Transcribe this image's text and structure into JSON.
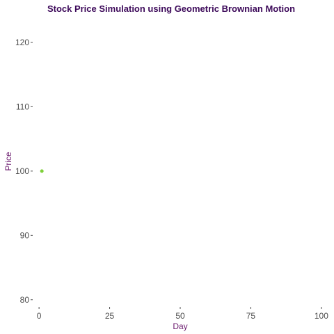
{
  "chart_data": {
    "type": "scatter",
    "title": "Stock Price Simulation using Geometric Brownian Motion",
    "xlabel": "Day",
    "ylabel": "Price",
    "xlim": [
      -2,
      102
    ],
    "ylim": [
      79,
      124
    ],
    "x_ticks": [
      0,
      25,
      50,
      75,
      100
    ],
    "y_ticks": [
      80,
      90,
      100,
      110,
      120
    ],
    "grid": false,
    "legend": "none",
    "colors": {
      "title": "#3d0a5a",
      "axis_label": "#6b1a6e",
      "tick_label": "#4d4d4d",
      "point": "#7ed03a"
    },
    "series": [
      {
        "points": [
          {
            "x": 1,
            "y": 100
          }
        ]
      }
    ]
  }
}
